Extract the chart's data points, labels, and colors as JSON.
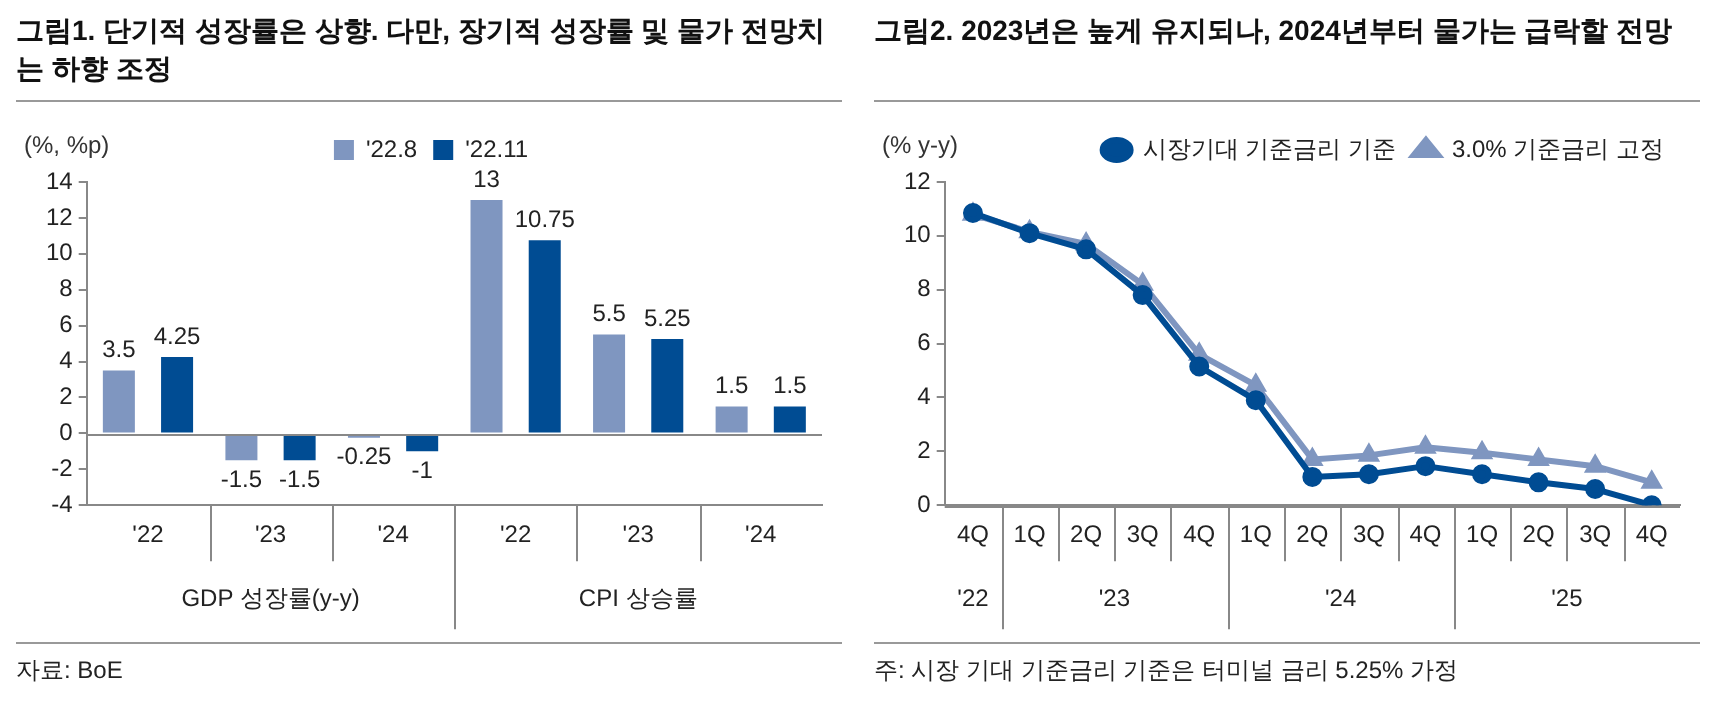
{
  "chart_data": [
    {
      "type": "bar",
      "title": "그림1. 단기적 성장률은 상향. 다만, 장기적 성장률 및 물가 전망치는 하향 조정",
      "ylabel": "(%, %p)",
      "categories": [
        "'22",
        "'23",
        "'24",
        "'22",
        "'23",
        "'24"
      ],
      "series": [
        {
          "name": "'22.8",
          "color": "#7f96c0",
          "values": [
            3.5,
            -1.5,
            -0.25,
            13,
            5.5,
            1.5
          ]
        },
        {
          "name": "'22.11",
          "color": "#004c93",
          "values": [
            4.25,
            -1.5,
            -1,
            10.75,
            5.25,
            1.5
          ]
        }
      ],
      "ylim": [
        -4,
        14
      ],
      "yticks": [
        -4,
        -2,
        0,
        2,
        4,
        6,
        8,
        10,
        12,
        14
      ],
      "data_labels": true,
      "legend": "top",
      "annotations": [
        "GDP 성장률(y-y)",
        "CPI 상승률",
        "자료: BoE"
      ]
    },
    {
      "type": "line",
      "title": "그림2. 2023년은 높게 유지되나, 2024년부터 물가는 급락할 전망",
      "ylabel": "(% y-y)",
      "categories": [
        "4Q",
        "1Q",
        "2Q",
        "3Q",
        "4Q",
        "1Q",
        "2Q",
        "3Q",
        "4Q",
        "1Q",
        "2Q",
        "3Q",
        "4Q"
      ],
      "series": [
        {
          "name": "시장기대 기준금리 기준",
          "color": "#004c93",
          "marker": "circle",
          "values": [
            10.85,
            10.1,
            9.5,
            7.8,
            5.15,
            3.9,
            1.05,
            1.15,
            1.45,
            1.15,
            0.85,
            0.6,
            0.0
          ]
        },
        {
          "name": "3.0% 기준금리 고정",
          "color": "#7f96c0",
          "marker": "triangle",
          "values": [
            10.8,
            10.15,
            9.7,
            8.2,
            5.6,
            4.45,
            1.7,
            1.85,
            2.15,
            1.95,
            1.7,
            1.45,
            0.85
          ]
        }
      ],
      "ylim": [
        0,
        12
      ],
      "yticks": [
        0,
        2,
        4,
        6,
        8,
        10,
        12
      ],
      "legend": "top right",
      "annotations": [
        "'22",
        "'23",
        "'24",
        "'25",
        "주: 시장 기대 기준금리 기준은 터미널 금리 5.25% 가정"
      ]
    }
  ]
}
